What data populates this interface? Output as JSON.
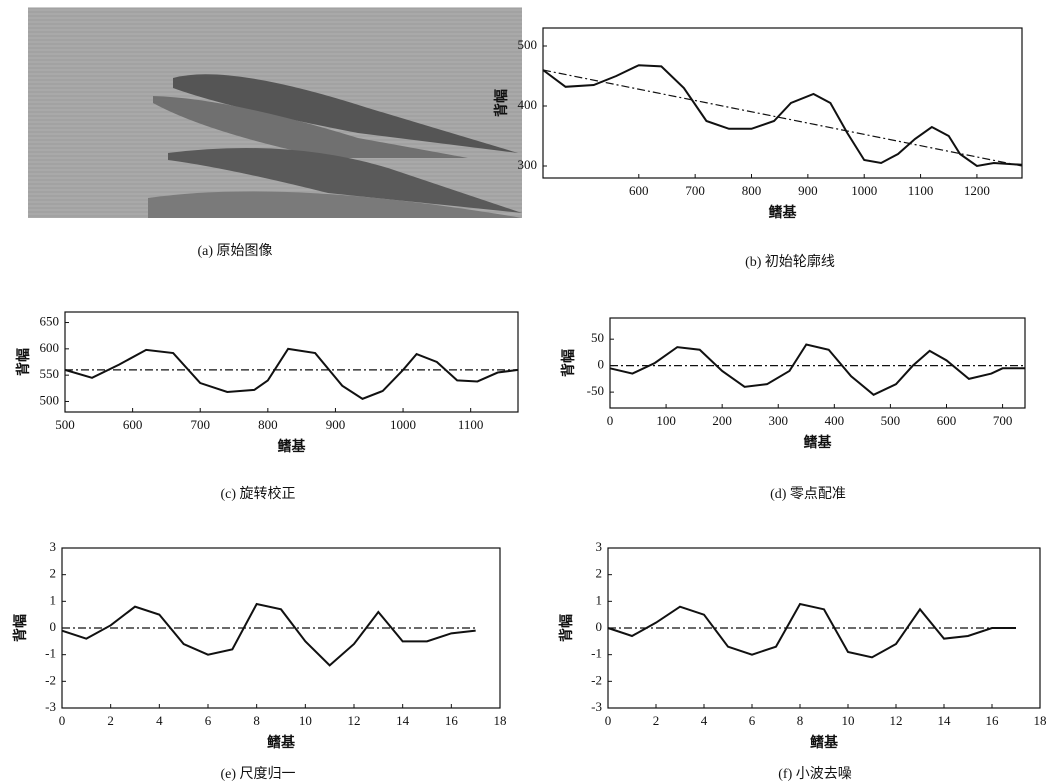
{
  "chart_data": [
    {
      "type": "image",
      "caption": "(a) 原始图像"
    },
    {
      "type": "line",
      "caption": "(b) 初始轮廓线",
      "xlabel": "鳍基",
      "ylabel": "背幅",
      "xlim": [
        430,
        1280
      ],
      "ylim": [
        280,
        530
      ],
      "xticks": [
        600,
        700,
        800,
        900,
        1000,
        1100,
        1200
      ],
      "yticks": [
        300,
        400,
        500
      ],
      "series": [
        {
          "color": "#111",
          "linestyle": "solid",
          "x": [
            430,
            470,
            520,
            560,
            600,
            640,
            680,
            720,
            760,
            800,
            840,
            870,
            910,
            940,
            970,
            1000,
            1030,
            1060,
            1090,
            1120,
            1150,
            1170,
            1200,
            1230,
            1280
          ],
          "values": [
            460,
            432,
            435,
            450,
            468,
            466,
            430,
            375,
            362,
            362,
            375,
            405,
            420,
            405,
            355,
            310,
            305,
            320,
            345,
            365,
            350,
            320,
            300,
            305,
            302
          ]
        },
        {
          "color": "#111",
          "linestyle": "dashdot",
          "x": [
            430,
            1280
          ],
          "values": [
            460,
            300
          ]
        }
      ]
    },
    {
      "type": "line",
      "caption": "(c) 旋转校正",
      "xlabel": "鳍基",
      "ylabel": "背幅",
      "xlim": [
        500,
        1170
      ],
      "ylim": [
        480,
        670
      ],
      "xticks": [
        500,
        600,
        700,
        800,
        900,
        1000,
        1100
      ],
      "yticks": [
        500,
        550,
        600,
        650
      ],
      "series": [
        {
          "color": "#111",
          "linestyle": "solid",
          "x": [
            500,
            540,
            580,
            620,
            660,
            700,
            740,
            780,
            800,
            830,
            870,
            910,
            940,
            970,
            1000,
            1020,
            1050,
            1080,
            1110,
            1140,
            1170
          ],
          "values": [
            560,
            545,
            570,
            598,
            592,
            535,
            518,
            522,
            540,
            600,
            592,
            530,
            505,
            520,
            560,
            590,
            575,
            540,
            538,
            555,
            560
          ]
        },
        {
          "color": "#111",
          "linestyle": "dashdot",
          "x": [
            500,
            1170
          ],
          "values": [
            560,
            560
          ]
        }
      ]
    },
    {
      "type": "line",
      "caption": "(d) 零点配准",
      "xlabel": "鳍基",
      "ylabel": "背幅",
      "xlim": [
        0,
        740
      ],
      "ylim": [
        -80,
        90
      ],
      "xticks": [
        0,
        100,
        200,
        300,
        400,
        500,
        600,
        700
      ],
      "yticks": [
        -50,
        0,
        50
      ],
      "series": [
        {
          "color": "#111",
          "linestyle": "solid",
          "x": [
            0,
            40,
            80,
            120,
            160,
            200,
            240,
            280,
            320,
            350,
            390,
            430,
            470,
            510,
            540,
            570,
            600,
            640,
            680,
            700,
            740
          ],
          "values": [
            -5,
            -15,
            5,
            35,
            30,
            -10,
            -40,
            -35,
            -10,
            40,
            30,
            -20,
            -55,
            -35,
            0,
            28,
            10,
            -25,
            -15,
            -5,
            -5
          ]
        },
        {
          "color": "#111",
          "linestyle": "dashdot",
          "x": [
            0,
            740
          ],
          "values": [
            0,
            0
          ]
        }
      ]
    },
    {
      "type": "line",
      "caption": "(e) 尺度归一",
      "xlabel": "鳍基",
      "ylabel": "背幅",
      "xlim": [
        0,
        18
      ],
      "ylim": [
        -3,
        3
      ],
      "xticks": [
        0,
        2,
        4,
        6,
        8,
        10,
        12,
        14,
        16,
        18
      ],
      "yticks": [
        -3,
        -2,
        -1,
        0,
        1,
        2,
        3
      ],
      "series": [
        {
          "color": "#111",
          "linestyle": "solid",
          "x": [
            0,
            1,
            2,
            3,
            4,
            5,
            6,
            7,
            8,
            9,
            10,
            11,
            12,
            13,
            14,
            15,
            16,
            17
          ],
          "values": [
            -0.1,
            -0.4,
            0.1,
            0.8,
            0.5,
            -0.6,
            -1,
            -0.8,
            0.9,
            0.7,
            -0.5,
            -1.4,
            -0.6,
            0.6,
            -0.5,
            -0.5,
            -0.2,
            -0.1
          ]
        },
        {
          "color": "#111",
          "linestyle": "dashdot",
          "x": [
            0,
            17
          ],
          "values": [
            0,
            0
          ]
        }
      ]
    },
    {
      "type": "line",
      "caption": "(f) 小波去噪",
      "xlabel": "鳍基",
      "ylabel": "背幅",
      "xlim": [
        0,
        18
      ],
      "ylim": [
        -3,
        3
      ],
      "xticks": [
        0,
        2,
        4,
        6,
        8,
        10,
        12,
        14,
        16,
        18
      ],
      "yticks": [
        -3,
        -2,
        -1,
        0,
        1,
        2,
        3
      ],
      "series": [
        {
          "color": "#111",
          "linestyle": "solid",
          "x": [
            0,
            1,
            2,
            3,
            4,
            5,
            6,
            7,
            8,
            9,
            10,
            11,
            12,
            13,
            14,
            15,
            16,
            17
          ],
          "values": [
            0,
            -0.3,
            0.2,
            0.8,
            0.5,
            -0.7,
            -1,
            -0.7,
            0.9,
            0.7,
            -0.9,
            -1.1,
            -0.6,
            0.7,
            -0.4,
            -0.3,
            0,
            0
          ]
        },
        {
          "color": "#111",
          "linestyle": "dashdot",
          "x": [
            0,
            17
          ],
          "values": [
            0,
            0
          ]
        }
      ]
    }
  ]
}
